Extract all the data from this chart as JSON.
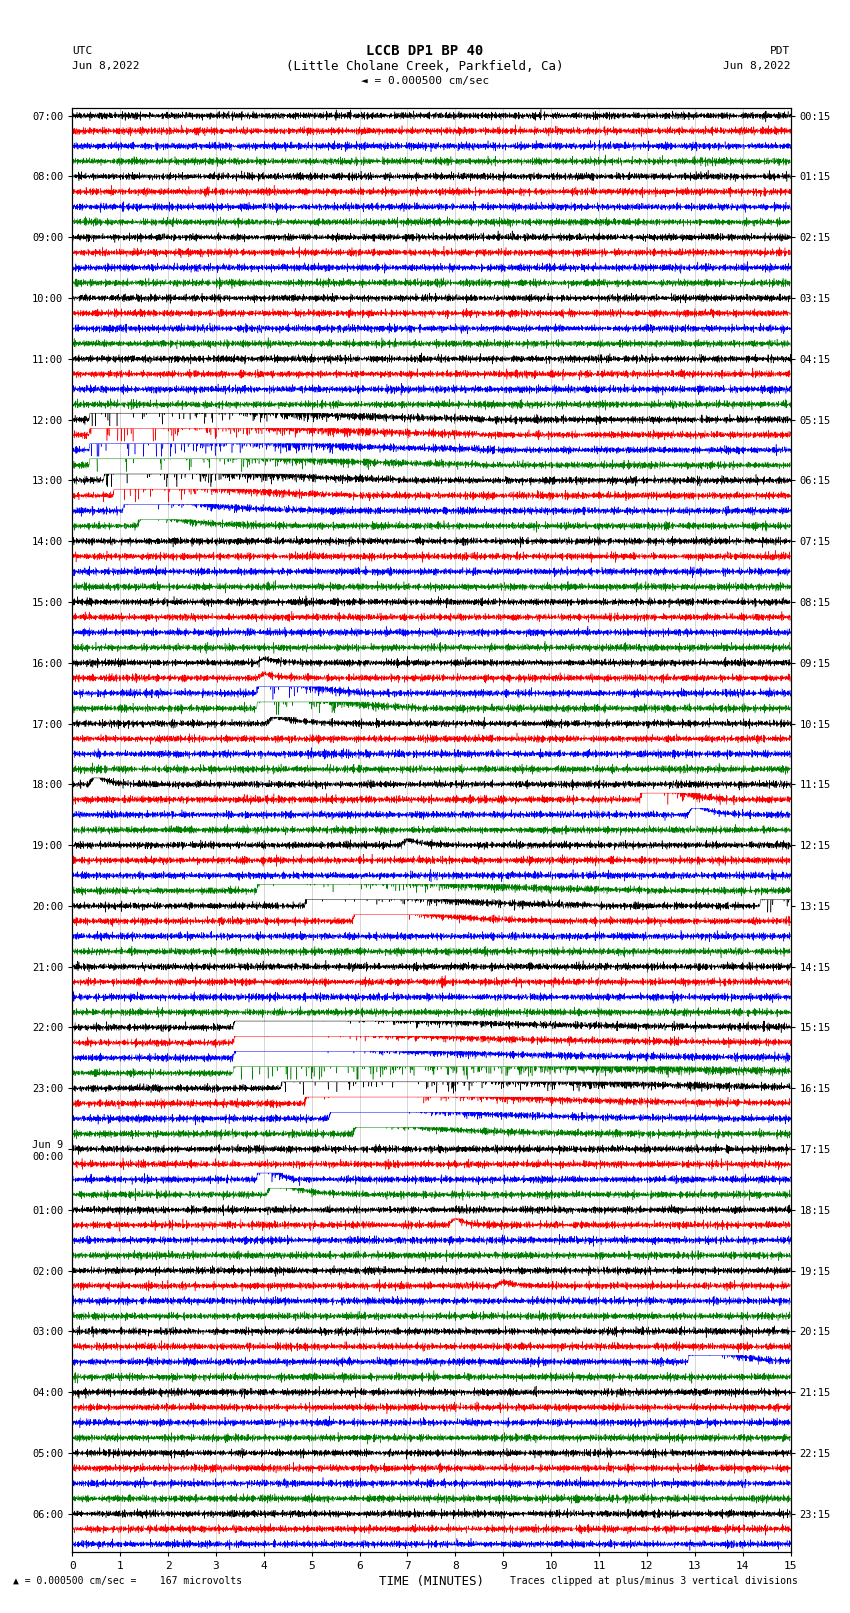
{
  "title_line1": "LCCB DP1 BP 40",
  "title_line2": "(Little Cholane Creek, Parkfield, Ca)",
  "scale_text": "= 0.000500 cm/sec",
  "left_label_top": "UTC",
  "left_label_bot": "Jun 8,2022",
  "right_label_top": "PDT",
  "right_label_bot": "Jun 8,2022",
  "xlabel": "TIME (MINUTES)",
  "bottom_left": "= 0.000500 cm/sec =    167 microvolts",
  "bottom_right": "Traces clipped at plus/minus 3 vertical divisions",
  "utc_times": [
    "07:00",
    "",
    "",
    "",
    "08:00",
    "",
    "",
    "",
    "09:00",
    "",
    "",
    "",
    "10:00",
    "",
    "",
    "",
    "11:00",
    "",
    "",
    "",
    "12:00",
    "",
    "",
    "",
    "13:00",
    "",
    "",
    "",
    "14:00",
    "",
    "",
    "",
    "15:00",
    "",
    "",
    "",
    "16:00",
    "",
    "",
    "",
    "17:00",
    "",
    "",
    "",
    "18:00",
    "",
    "",
    "",
    "19:00",
    "",
    "",
    "",
    "20:00",
    "",
    "",
    "",
    "21:00",
    "",
    "",
    "",
    "22:00",
    "",
    "",
    "",
    "23:00",
    "",
    "",
    "",
    "Jun 9\n00:00",
    "",
    "",
    "",
    "01:00",
    "",
    "",
    "",
    "02:00",
    "",
    "",
    "",
    "03:00",
    "",
    "",
    "",
    "04:00",
    "",
    "",
    "",
    "05:00",
    "",
    "",
    "",
    "06:00",
    "",
    ""
  ],
  "pdt_times": [
    "00:15",
    "",
    "",
    "",
    "01:15",
    "",
    "",
    "",
    "02:15",
    "",
    "",
    "",
    "03:15",
    "",
    "",
    "",
    "04:15",
    "",
    "",
    "",
    "05:15",
    "",
    "",
    "",
    "06:15",
    "",
    "",
    "",
    "07:15",
    "",
    "",
    "",
    "08:15",
    "",
    "",
    "",
    "09:15",
    "",
    "",
    "",
    "10:15",
    "",
    "",
    "",
    "11:15",
    "",
    "",
    "",
    "12:15",
    "",
    "",
    "",
    "13:15",
    "",
    "",
    "",
    "14:15",
    "",
    "",
    "",
    "15:15",
    "",
    "",
    "",
    "16:15",
    "",
    "",
    "",
    "17:15",
    "",
    "",
    "",
    "18:15",
    "",
    "",
    "",
    "19:15",
    "",
    "",
    "",
    "20:15",
    "",
    "",
    "",
    "21:15",
    "",
    "",
    "",
    "22:15",
    "",
    "",
    "",
    "23:15",
    "",
    ""
  ],
  "colors": [
    "black",
    "red",
    "blue",
    "green"
  ],
  "bg_color": "white",
  "num_rows": 95,
  "xmin": 0,
  "xmax": 15,
  "seed": 42
}
